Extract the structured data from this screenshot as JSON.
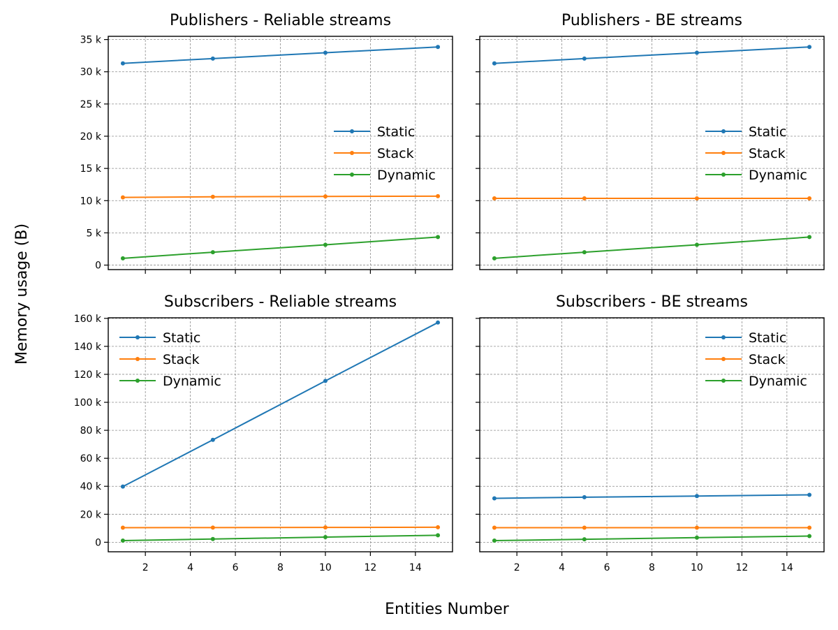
{
  "figure": {
    "xlabel": "Entities Number",
    "ylabel": "Memory usage (B)"
  },
  "chart_data": [
    {
      "type": "line",
      "title": "Publishers - Reliable streams",
      "x": [
        1,
        5,
        10,
        15
      ],
      "series": [
        {
          "name": "Static",
          "color": "#1f77b4",
          "values": [
            31300,
            32050,
            32950,
            33850
          ]
        },
        {
          "name": "Stack",
          "color": "#ff7f0e",
          "values": [
            10500,
            10600,
            10650,
            10700
          ]
        },
        {
          "name": "Dynamic",
          "color": "#2ca02c",
          "values": [
            1050,
            2000,
            3150,
            4350
          ]
        }
      ],
      "xlim": [
        0.35,
        15.65
      ],
      "ylim": [
        -700,
        35500
      ],
      "xticks": [
        2,
        4,
        6,
        8,
        10,
        12,
        14
      ],
      "yticks": [
        0,
        5000,
        10000,
        15000,
        20000,
        25000,
        30000,
        35000
      ],
      "ytick_labels": [
        "0",
        "5 k",
        "10 k",
        "15 k",
        "20 k",
        "25 k",
        "30 k",
        "35 k"
      ],
      "show_xtick_labels": false,
      "show_ytick_labels": true,
      "grid": true,
      "legend": "center-right"
    },
    {
      "type": "line",
      "title": "Publishers - BE streams",
      "x": [
        1,
        5,
        10,
        15
      ],
      "series": [
        {
          "name": "Static",
          "color": "#1f77b4",
          "values": [
            31300,
            32050,
            32950,
            33850
          ]
        },
        {
          "name": "Stack",
          "color": "#ff7f0e",
          "values": [
            10350,
            10350,
            10350,
            10350
          ]
        },
        {
          "name": "Dynamic",
          "color": "#2ca02c",
          "values": [
            1050,
            2000,
            3150,
            4350
          ]
        }
      ],
      "xlim": [
        0.35,
        15.65
      ],
      "ylim": [
        -700,
        35500
      ],
      "xticks": [
        2,
        4,
        6,
        8,
        10,
        12,
        14
      ],
      "yticks": [
        0,
        5000,
        10000,
        15000,
        20000,
        25000,
        30000,
        35000
      ],
      "ytick_labels": [
        "0",
        "5 k",
        "10 k",
        "15 k",
        "20 k",
        "25 k",
        "30 k",
        "35 k"
      ],
      "show_xtick_labels": false,
      "show_ytick_labels": false,
      "grid": true,
      "legend": "center-right"
    },
    {
      "type": "line",
      "title": "Subscribers - Reliable streams",
      "x": [
        1,
        5,
        10,
        15
      ],
      "series": [
        {
          "name": "Static",
          "color": "#1f77b4",
          "values": [
            39800,
            73200,
            115300,
            157000
          ]
        },
        {
          "name": "Stack",
          "color": "#ff7f0e",
          "values": [
            10400,
            10500,
            10600,
            10700
          ]
        },
        {
          "name": "Dynamic",
          "color": "#2ca02c",
          "values": [
            1200,
            2300,
            3700,
            5000
          ]
        }
      ],
      "xlim": [
        0.35,
        15.65
      ],
      "ylim": [
        -6800,
        160400
      ],
      "xticks": [
        2,
        4,
        6,
        8,
        10,
        12,
        14
      ],
      "yticks": [
        0,
        20000,
        40000,
        60000,
        80000,
        100000,
        120000,
        140000,
        160000
      ],
      "ytick_labels": [
        "0",
        "20 k",
        "40 k",
        "60 k",
        "80 k",
        "100 k",
        "120 k",
        "140 k",
        "160 k"
      ],
      "show_xtick_labels": true,
      "show_ytick_labels": true,
      "grid": true,
      "legend": "upper-left"
    },
    {
      "type": "line",
      "title": "Subscribers - BE streams",
      "x": [
        1,
        5,
        10,
        15
      ],
      "series": [
        {
          "name": "Static",
          "color": "#1f77b4",
          "values": [
            31400,
            32200,
            33000,
            33900
          ]
        },
        {
          "name": "Stack",
          "color": "#ff7f0e",
          "values": [
            10400,
            10400,
            10400,
            10400
          ]
        },
        {
          "name": "Dynamic",
          "color": "#2ca02c",
          "values": [
            1200,
            2100,
            3300,
            4400
          ]
        }
      ],
      "xlim": [
        0.35,
        15.65
      ],
      "ylim": [
        -6800,
        160400
      ],
      "xticks": [
        2,
        4,
        6,
        8,
        10,
        12,
        14
      ],
      "yticks": [
        0,
        20000,
        40000,
        60000,
        80000,
        100000,
        120000,
        140000,
        160000
      ],
      "ytick_labels": [
        "0",
        "20 k",
        "40 k",
        "60 k",
        "80 k",
        "100 k",
        "120 k",
        "140 k",
        "160 k"
      ],
      "show_xtick_labels": true,
      "show_ytick_labels": false,
      "grid": true,
      "legend": "upper-right"
    }
  ]
}
